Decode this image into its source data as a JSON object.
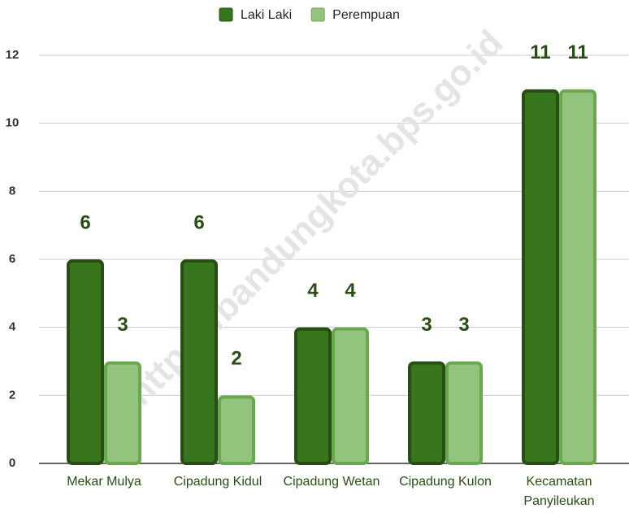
{
  "chart_data": {
    "type": "bar",
    "categories": [
      "Mekar Mulya",
      "Cipadung Kidul",
      "Cipadung Wetan",
      "Cipadung Kulon",
      "Kecamatan Panyileukan"
    ],
    "series": [
      {
        "name": "Laki Laki",
        "color": "#38761d",
        "values": [
          6,
          6,
          4,
          3,
          11
        ]
      },
      {
        "name": "Perempuan",
        "color": "#93c47d",
        "values": [
          3,
          2,
          4,
          3,
          11
        ]
      }
    ],
    "ylim": [
      0,
      12
    ],
    "yticks": [
      0,
      2,
      4,
      6,
      8,
      10,
      12
    ],
    "grid": true,
    "legend": "top",
    "watermark": "https://bandungkota.bps.go.id"
  }
}
